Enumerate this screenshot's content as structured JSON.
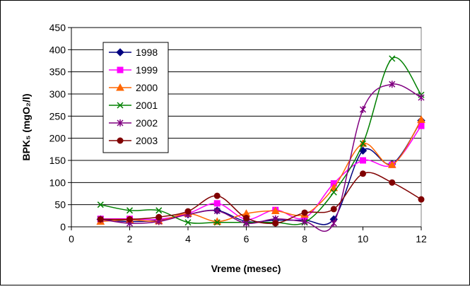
{
  "chart_data": {
    "type": "line",
    "title": "",
    "xlabel": "Vreme (mesec)",
    "ylabel": "BPK₅ (mgO₂/l)",
    "xlim": [
      0,
      12
    ],
    "ylim": [
      0,
      450
    ],
    "xticks": [
      0,
      2,
      4,
      6,
      8,
      10,
      12
    ],
    "yticks": [
      0,
      50,
      100,
      150,
      200,
      250,
      300,
      350,
      400,
      450
    ],
    "grid": "horizontal",
    "legend_position": "top-left",
    "smooth": true,
    "series": [
      {
        "name": "1998",
        "color": "#000080",
        "marker": "diamond",
        "x": [
          1,
          2,
          3,
          4,
          5,
          6,
          7,
          8,
          9,
          10,
          11,
          12
        ],
        "values": [
          17,
          12,
          15,
          28,
          37,
          12,
          15,
          15,
          17,
          172,
          142,
          240
        ]
      },
      {
        "name": "1999",
        "color": "#ff00ff",
        "marker": "square",
        "x": [
          1,
          2,
          3,
          4,
          5,
          6,
          7,
          8,
          9,
          10,
          11,
          12
        ],
        "values": [
          18,
          18,
          17,
          30,
          53,
          17,
          38,
          20,
          98,
          150,
          140,
          228
        ]
      },
      {
        "name": "2000",
        "color": "#ff6600",
        "marker": "triangle",
        "x": [
          1,
          2,
          3,
          4,
          5,
          6,
          7,
          8,
          9,
          10,
          11,
          12
        ],
        "values": [
          12,
          16,
          13,
          30,
          12,
          30,
          36,
          28,
          88,
          188,
          140,
          242
        ]
      },
      {
        "name": "2001",
        "color": "#008000",
        "marker": "x",
        "x": [
          1,
          2,
          3,
          4,
          5,
          6,
          7,
          8,
          9,
          10,
          11,
          12
        ],
        "values": [
          50,
          37,
          37,
          10,
          10,
          10,
          10,
          10,
          78,
          188,
          380,
          298
        ]
      },
      {
        "name": "2002",
        "color": "#800080",
        "marker": "star",
        "x": [
          1,
          2,
          3,
          4,
          5,
          6,
          7,
          8,
          9,
          10,
          11,
          12
        ],
        "values": [
          17,
          8,
          12,
          28,
          36,
          8,
          18,
          12,
          8,
          265,
          322,
          292
        ]
      },
      {
        "name": "2003",
        "color": "#800000",
        "marker": "circle",
        "x": [
          1,
          2,
          3,
          4,
          5,
          6,
          7,
          8,
          9,
          10,
          11,
          12
        ],
        "values": [
          17,
          17,
          22,
          35,
          70,
          20,
          8,
          32,
          40,
          120,
          100,
          62
        ]
      }
    ]
  }
}
